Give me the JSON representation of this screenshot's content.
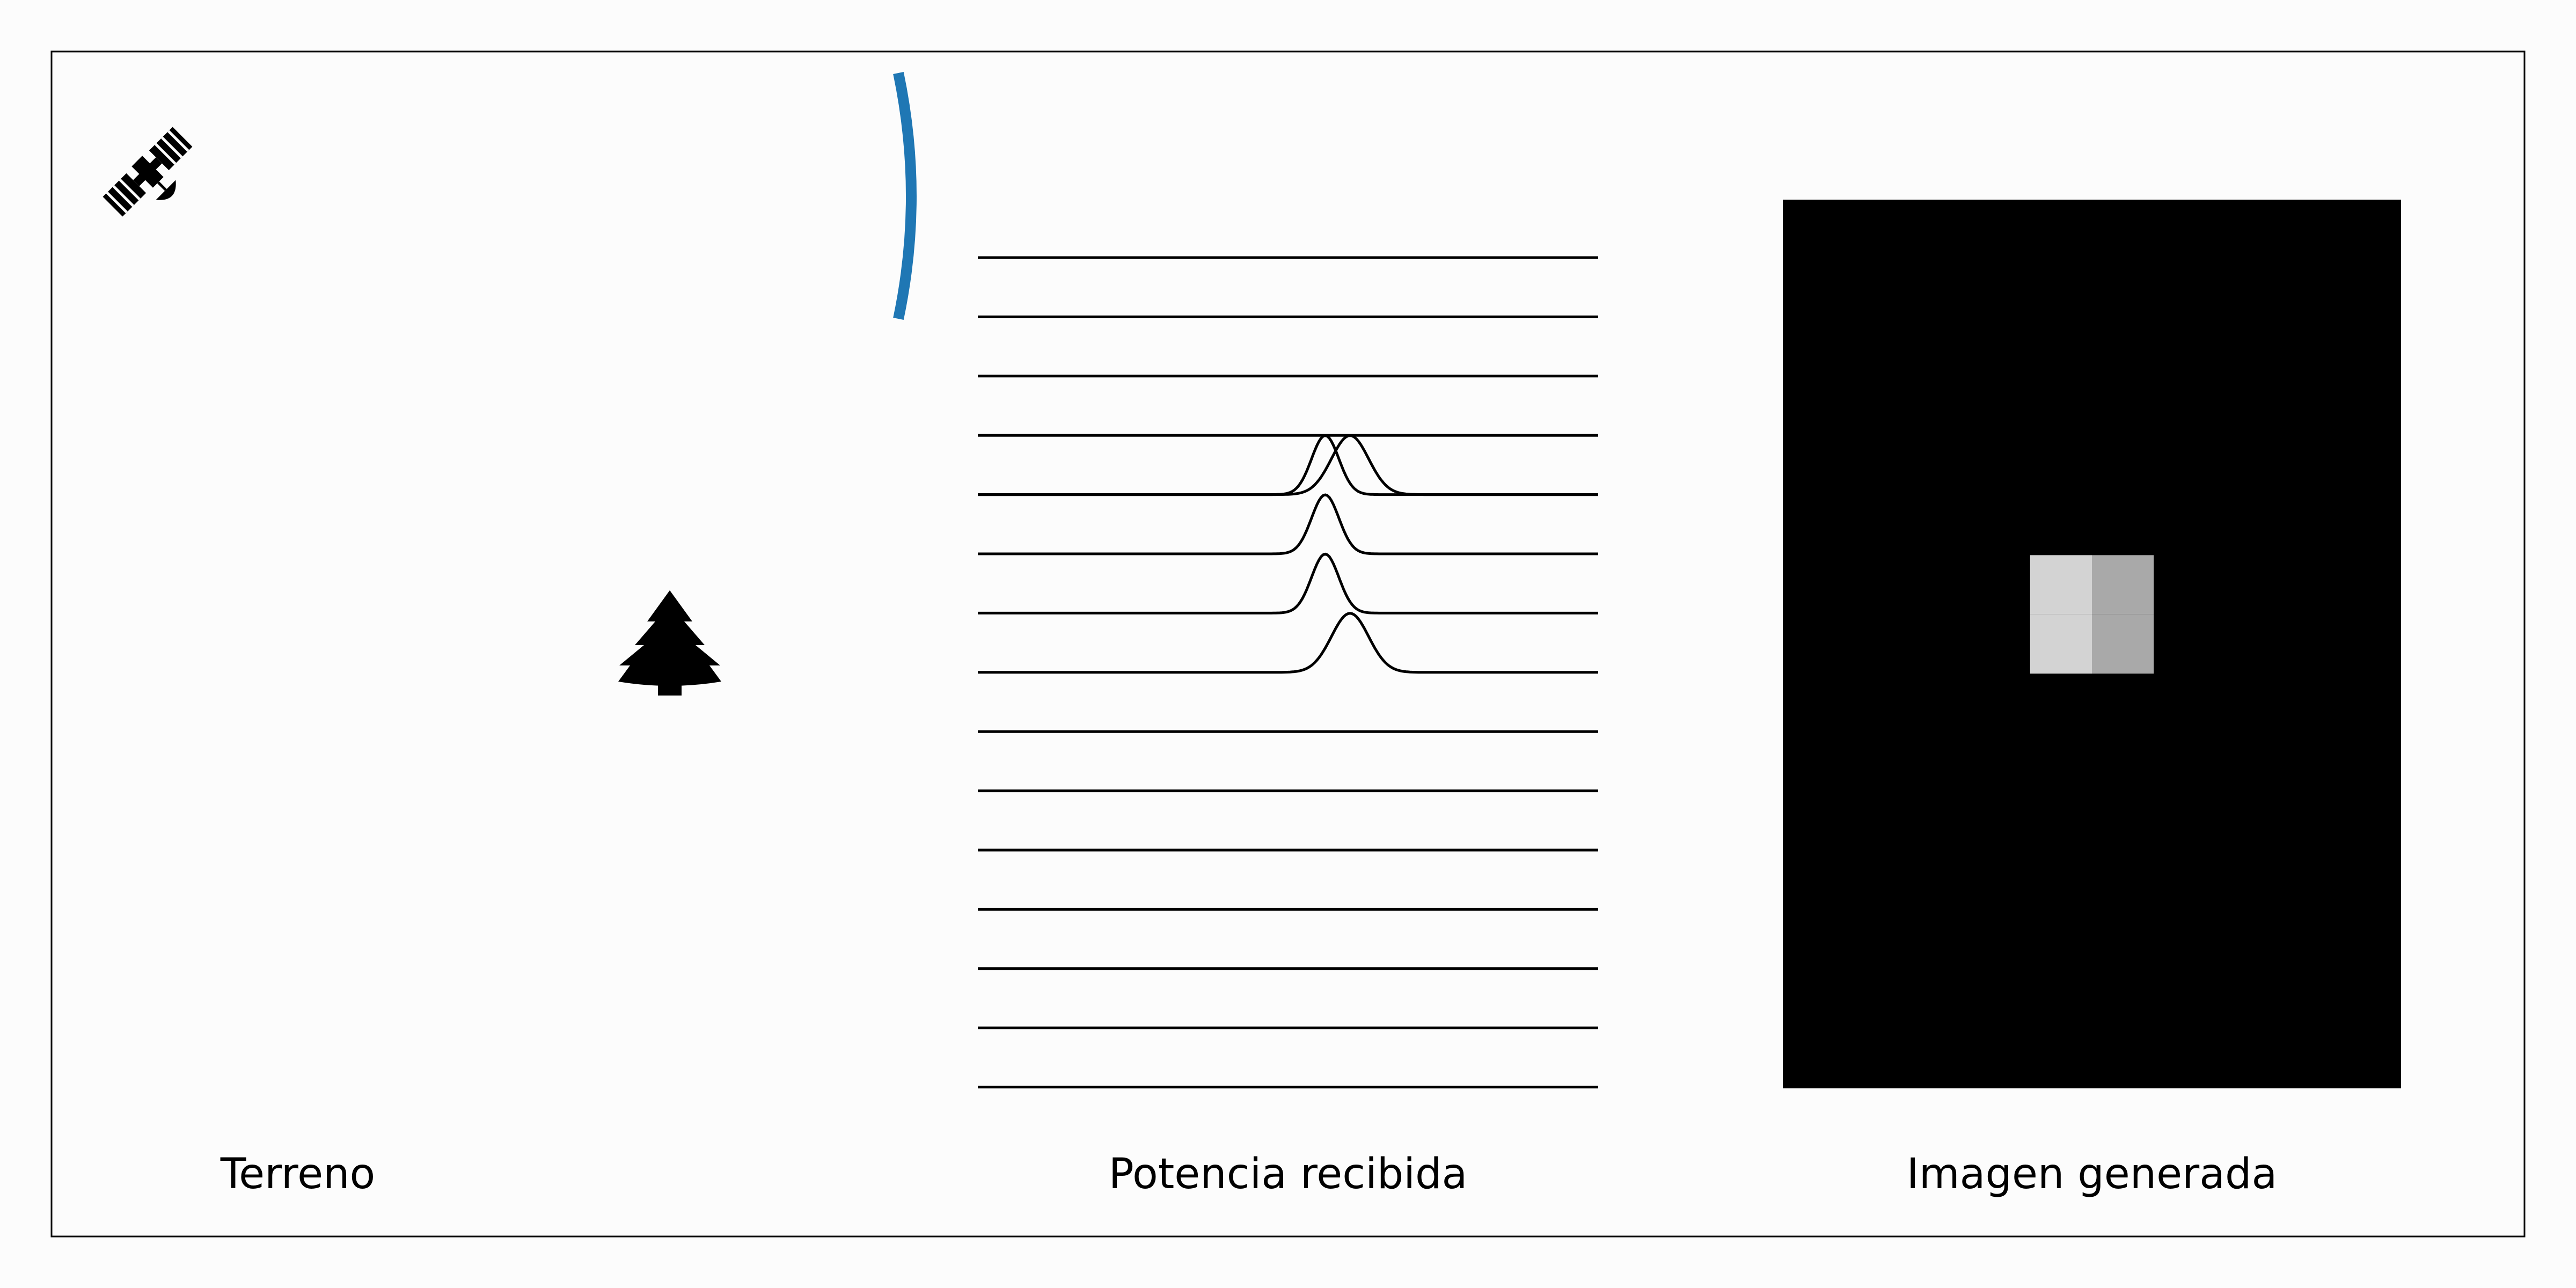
{
  "labels": {
    "terrain": "Terreno",
    "received_power": "Potencia recibida",
    "generated_image": "Imagen generada"
  },
  "icons": {
    "satellite": "satellite-icon",
    "tree": "tree-icon"
  },
  "colors": {
    "background": "#fcfcfc",
    "beam_arc": "#1f77b4",
    "ink": "#000000",
    "image_background": "#000000",
    "pixel_bright": "#d3d3d3",
    "pixel_dim": "#a9a9a9"
  },
  "received_power": {
    "num_traces": 15,
    "pulses": [
      {
        "trace": 4,
        "center": 0.6,
        "amplitude": 0.8,
        "width": 0.03
      },
      {
        "trace": 4,
        "center": 0.56,
        "amplitude": 0.8,
        "width": 0.022
      },
      {
        "trace": 5,
        "center": 0.56,
        "amplitude": 0.8,
        "width": 0.022
      },
      {
        "trace": 6,
        "center": 0.56,
        "amplitude": 0.8,
        "width": 0.022
      },
      {
        "trace": 7,
        "center": 0.6,
        "amplitude": 0.8,
        "width": 0.03
      }
    ]
  },
  "generated_image": {
    "grid_cols": 10,
    "grid_rows": 15,
    "bright_pixels": [
      {
        "col": 4,
        "row": 6,
        "level": "pixel_bright"
      },
      {
        "col": 4,
        "row": 7,
        "level": "pixel_bright"
      },
      {
        "col": 5,
        "row": 6,
        "level": "pixel_dim"
      },
      {
        "col": 5,
        "row": 7,
        "level": "pixel_dim"
      }
    ]
  }
}
